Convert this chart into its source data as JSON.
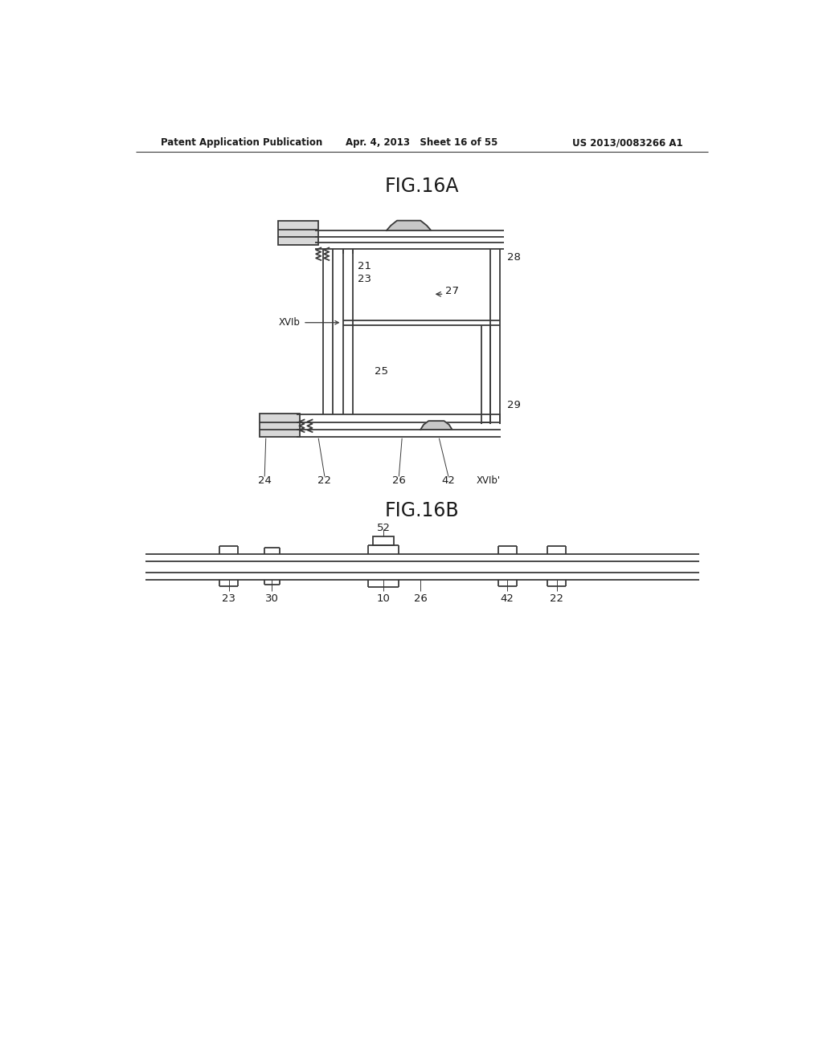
{
  "bg_color": "#ffffff",
  "header_left": "Patent Application Publication",
  "header_mid": "Apr. 4, 2013   Sheet 16 of 55",
  "header_right": "US 2013/0083266 A1",
  "fig_a_title": "FIG.16A",
  "fig_b_title": "FIG.16B",
  "line_color": "#3a3a3a",
  "label_color": "#1a1a1a"
}
